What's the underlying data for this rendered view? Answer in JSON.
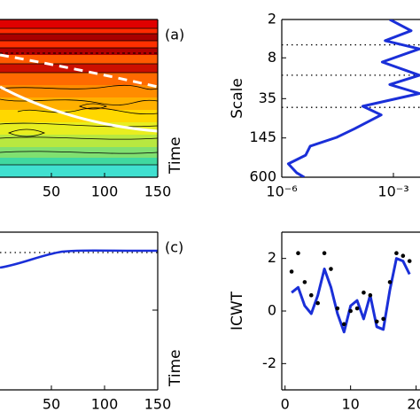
{
  "chart_data": [
    {
      "type": "contour",
      "label": "(a)",
      "ylabel": "Time",
      "xlim": [
        0,
        150
      ],
      "xticks": [
        50,
        100,
        150
      ]
    },
    {
      "type": "profile",
      "ylabel": "Scale",
      "xscale": "log",
      "yscale": "log",
      "yinverted": true,
      "xlim": [
        1e-06,
        0.01
      ],
      "xticks": [
        {
          "value": 1e-06,
          "label": "10⁻⁶"
        },
        {
          "value": 0.001,
          "label": "10⁻³"
        }
      ],
      "ylim": [
        2,
        600
      ],
      "yticks": [
        2,
        8,
        35,
        145,
        600
      ],
      "reference_lines": [
        5,
        15,
        48
      ],
      "series": [
        {
          "color": "#1a2fd8",
          "x": [
            0.0008,
            0.003,
            0.0006,
            0.005,
            0.0005,
            0.005,
            0.0008,
            0.005,
            0.00015,
            0.00047,
            9e-05,
            3e-05,
            5.8e-06,
            4.4e-06,
            1.5e-06,
            2.5e-06,
            4e-06
          ],
          "y": [
            2,
            3,
            4.3,
            5.8,
            9.3,
            15,
            21,
            29,
            46,
            63,
            104,
            142,
            195,
            270,
            370,
            510,
            600
          ]
        }
      ]
    },
    {
      "type": "convergence",
      "label": "(c)",
      "ylabel": "Time",
      "xlim": [
        0,
        150
      ],
      "xticks": [
        50,
        100,
        150
      ]
    },
    {
      "type": "scatter-line",
      "ylabel": "ICWT",
      "xlim": [
        -0.5,
        21
      ],
      "xticks": [
        0,
        10,
        20
      ],
      "ylim": [
        -3,
        3
      ],
      "yticks": [
        -2,
        0,
        2
      ],
      "series": [
        {
          "color": "#1a2fd8",
          "x": [
            1,
            2,
            3,
            4,
            5,
            6,
            7,
            8,
            9,
            10,
            11,
            12,
            13,
            14,
            15,
            16,
            17,
            18,
            19
          ],
          "values": [
            0.7,
            0.9,
            0.2,
            -0.1,
            0.6,
            1.6,
            0.9,
            -0.1,
            -0.8,
            0.2,
            0.4,
            -0.3,
            0.6,
            -0.6,
            -0.7,
            0.8,
            2.0,
            1.9,
            1.4
          ]
        }
      ],
      "points": {
        "color": "#000000",
        "x": [
          1,
          2,
          3,
          4,
          5,
          6,
          7,
          8,
          9,
          10,
          11,
          12,
          13,
          14,
          15,
          16,
          17,
          18,
          19
        ],
        "values": [
          1.5,
          2.2,
          1.1,
          0.6,
          0.3,
          2.2,
          1.6,
          0.1,
          -0.5,
          0.0,
          0.1,
          0.7,
          0.6,
          -0.4,
          -0.3,
          1.1,
          2.2,
          2.1,
          1.9
        ]
      }
    }
  ]
}
